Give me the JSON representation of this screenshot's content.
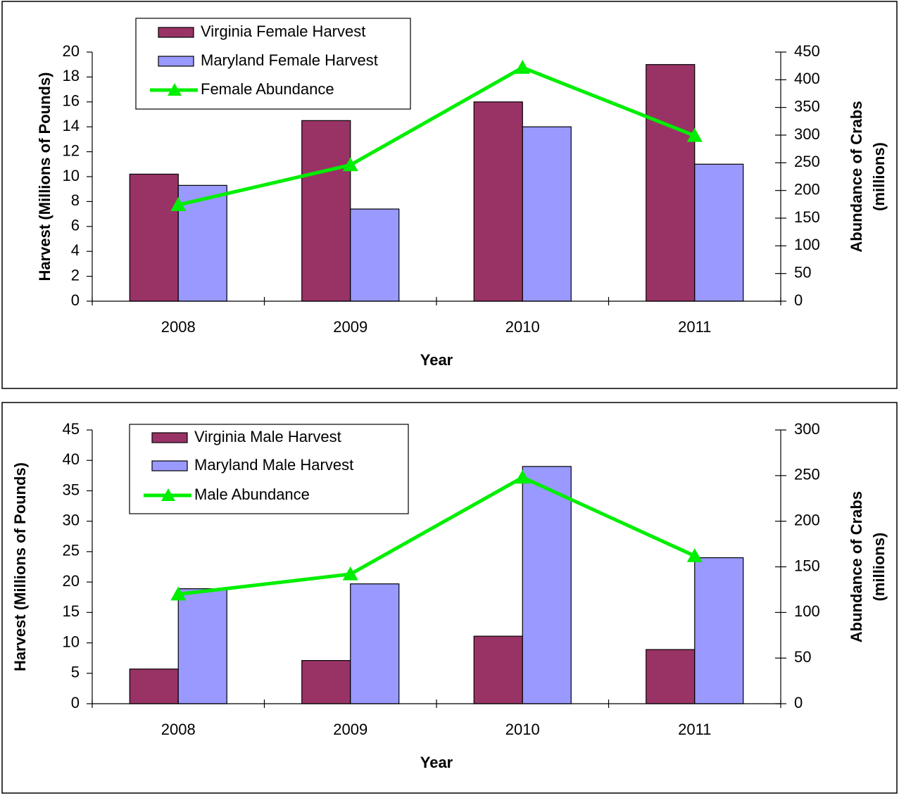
{
  "chart_data": [
    {
      "type": "bar-line",
      "categories": [
        "2008",
        "2009",
        "2010",
        "2011"
      ],
      "series": [
        {
          "name": "Virginia Female Harvest",
          "color": "#993366",
          "values": [
            10.2,
            14.5,
            16.0,
            19.0
          ]
        },
        {
          "name": "Maryland Female Harvest",
          "color": "#9999ff",
          "values": [
            9.3,
            7.4,
            14.0,
            11.0
          ]
        },
        {
          "name": "Female Abundance",
          "color": "#00ee00",
          "values": [
            174,
            246,
            422,
            299
          ],
          "axis": "y2",
          "kind": "line"
        }
      ],
      "x_label": "Year",
      "y_label": "Harvest (Millions of Pounds)",
      "y2_label": [
        "Abundance of Crabs",
        "(millions)"
      ],
      "ylim": [
        0,
        20
      ],
      "yticks": [
        0,
        2,
        4,
        6,
        8,
        10,
        12,
        14,
        16,
        18,
        20
      ],
      "y2lim": [
        0,
        450
      ],
      "y2ticks": [
        0,
        50,
        100,
        150,
        200,
        250,
        300,
        350,
        400,
        450
      ],
      "legend": "top-left"
    },
    {
      "type": "bar-line",
      "categories": [
        "2008",
        "2009",
        "2010",
        "2011"
      ],
      "series": [
        {
          "name": "Virginia Male Harvest",
          "color": "#993366",
          "values": [
            5.7,
            7.1,
            11.1,
            8.9
          ]
        },
        {
          "name": "Maryland Male Harvest",
          "color": "#9999ff",
          "values": [
            18.9,
            19.7,
            39.0,
            24.0
          ]
        },
        {
          "name": "Male Abundance",
          "color": "#00ee00",
          "values": [
            120,
            142,
            248,
            162
          ],
          "axis": "y2",
          "kind": "line"
        }
      ],
      "x_label": "Year",
      "y_label": "Harvest (Millions of Pounds)",
      "y2_label": [
        "Abundance of Crabs",
        "(millions)"
      ],
      "ylim": [
        0,
        45
      ],
      "yticks": [
        0,
        5,
        10,
        15,
        20,
        25,
        30,
        35,
        40,
        45
      ],
      "y2lim": [
        0,
        300
      ],
      "y2ticks": [
        0,
        50,
        100,
        150,
        200,
        250,
        300
      ],
      "legend": "top-left"
    }
  ]
}
